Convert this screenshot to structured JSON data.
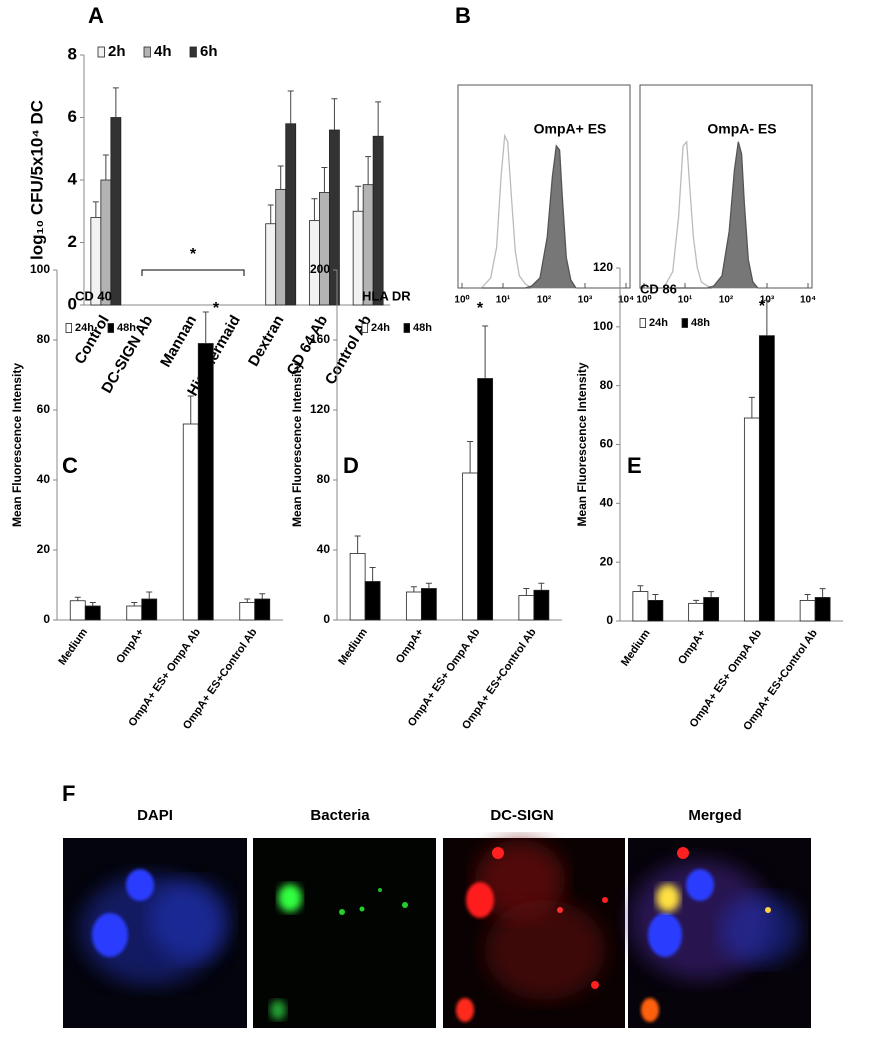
{
  "chart_data": [
    {
      "type": "bar",
      "panel": "A",
      "y_label": "log₁₀ CFU/5x10⁴ DC",
      "categories": [
        "Control",
        "DC-SIGN Ab",
        "Mannan",
        "His-Mermaid",
        "Dextran",
        "CD 64 Ab",
        "Control Ab"
      ],
      "series": [
        {
          "name": "2h",
          "color": "#f2f2f2",
          "values": [
            2.8,
            0,
            0,
            0,
            2.6,
            2.7,
            3.0
          ],
          "errors": [
            0.5,
            null,
            null,
            null,
            0.6,
            0.7,
            0.8
          ]
        },
        {
          "name": "4h",
          "color": "#b3b3b3",
          "values": [
            4.0,
            0,
            0,
            0,
            3.7,
            3.6,
            3.85
          ],
          "errors": [
            0.8,
            null,
            null,
            null,
            0.75,
            0.8,
            0.9
          ]
        },
        {
          "name": "6h",
          "color": "#333333",
          "values": [
            6.0,
            0,
            0,
            0,
            5.8,
            5.6,
            5.4
          ],
          "errors": [
            0.95,
            null,
            null,
            null,
            1.05,
            1.0,
            1.1
          ]
        }
      ],
      "ylim": [
        0,
        8
      ],
      "yticks": [
        0,
        2,
        4,
        6,
        8
      ],
      "annotation": "*"
    },
    {
      "type": "area",
      "panel": "B",
      "label": "OmpA+ ES",
      "log_x": true,
      "x": [
        3,
        5,
        7,
        9,
        11,
        13,
        16,
        20,
        25,
        35,
        50,
        80,
        120,
        160,
        200,
        240,
        280,
        350,
        450,
        600
      ],
      "series": [
        {
          "color": "#bbbbbb",
          "filled": false,
          "values": [
            0,
            5,
            20,
            55,
            75,
            72,
            45,
            18,
            6,
            2,
            0,
            0,
            0,
            0,
            0,
            0,
            0,
            0,
            0,
            0
          ]
        },
        {
          "color": "#777777",
          "filled": true,
          "values": [
            0,
            0,
            0,
            0,
            0,
            0,
            0,
            0,
            0,
            0,
            1,
            5,
            25,
            55,
            70,
            68,
            45,
            15,
            4,
            0
          ]
        }
      ],
      "xlim": [
        1,
        10000
      ],
      "xticks": [
        {
          "value": 1,
          "label": "10⁰"
        },
        {
          "value": 10,
          "label": "10¹"
        },
        {
          "value": 100,
          "label": "10²"
        },
        {
          "value": 1000,
          "label": "10³"
        },
        {
          "value": 10000,
          "label": "10⁴"
        }
      ],
      "ylim": [
        0,
        100
      ]
    },
    {
      "type": "area",
      "label": "OmpA- ES",
      "log_x": true,
      "x": [
        3,
        5,
        7,
        9,
        11,
        13,
        16,
        20,
        25,
        35,
        50,
        80,
        120,
        160,
        200,
        240,
        280,
        350,
        450,
        600
      ],
      "series": [
        {
          "color": "#bbbbbb",
          "filled": false,
          "values": [
            0,
            8,
            35,
            70,
            72,
            50,
            25,
            10,
            3,
            1,
            0,
            0,
            0,
            0,
            0,
            0,
            0,
            0,
            0,
            0
          ]
        },
        {
          "color": "#777777",
          "filled": true,
          "values": [
            0,
            0,
            0,
            0,
            0,
            0,
            0,
            0,
            0,
            0,
            1,
            6,
            28,
            58,
            72,
            66,
            42,
            14,
            3,
            0
          ]
        }
      ],
      "xlim": [
        1,
        10000
      ],
      "xticks": [
        {
          "value": 1,
          "label": "10⁰"
        },
        {
          "value": 10,
          "label": "10¹"
        },
        {
          "value": 100,
          "label": "10²"
        },
        {
          "value": 1000,
          "label": "10³"
        },
        {
          "value": 10000,
          "label": "10⁴"
        }
      ],
      "ylim": [
        0,
        100
      ]
    },
    {
      "type": "bar",
      "panel": "C",
      "title": "CD 40",
      "y_label": "Mean Fluorescence Intensity",
      "categories": [
        "Medium",
        "OmpA+",
        "OmpA+ ES+ OmpA Ab",
        "OmpA+ ES+Control Ab"
      ],
      "series": [
        {
          "name": "24h",
          "color": "#ffffff",
          "values": [
            5.5,
            4,
            56,
            5
          ],
          "errors": [
            1,
            1,
            8,
            1
          ]
        },
        {
          "name": "48h",
          "color": "#000000",
          "values": [
            4,
            6,
            79,
            6
          ],
          "errors": [
            1,
            2,
            9,
            1.5
          ]
        }
      ],
      "ylim": [
        0,
        100
      ],
      "yticks": [
        0,
        20,
        40,
        60,
        80,
        100
      ],
      "annotation": "*"
    },
    {
      "type": "bar",
      "panel": "D",
      "title": "HLA DR",
      "y_label": "Mean Fluorescence Intensity",
      "categories": [
        "Medium",
        "OmpA+",
        "OmpA+ ES+ OmpA Ab",
        "OmpA+ ES+Control Ab"
      ],
      "series": [
        {
          "name": "24h",
          "color": "#ffffff",
          "values": [
            38,
            16,
            84,
            14
          ],
          "errors": [
            10,
            3,
            18,
            4
          ]
        },
        {
          "name": "48h",
          "color": "#000000",
          "values": [
            22,
            18,
            138,
            17
          ],
          "errors": [
            8,
            3,
            30,
            4
          ]
        }
      ],
      "ylim": [
        0,
        200
      ],
      "yticks": [
        0,
        40,
        80,
        120,
        160,
        200
      ],
      "annotation": "*"
    },
    {
      "type": "bar",
      "panel": "E",
      "title": "CD 86",
      "y_label": "Mean Fluorescence Intensity",
      "categories": [
        "Medium",
        "OmpA+",
        "OmpA+ ES+ OmpA Ab",
        "OmpA+ ES+Control Ab"
      ],
      "series": [
        {
          "name": "24h",
          "color": "#ffffff",
          "values": [
            10,
            6,
            69,
            7
          ],
          "errors": [
            2,
            1,
            7,
            2
          ]
        },
        {
          "name": "48h",
          "color": "#000000",
          "values": [
            7,
            8,
            97,
            8
          ],
          "errors": [
            2,
            2,
            12,
            3
          ]
        }
      ],
      "ylim": [
        0,
        120
      ],
      "yticks": [
        0,
        20,
        40,
        60,
        80,
        100,
        120
      ],
      "annotation": "*"
    }
  ],
  "figure_f": {
    "panel": "F",
    "captions": [
      "DAPI",
      "Bacteria",
      "DC-SIGN",
      "Merged"
    ]
  }
}
